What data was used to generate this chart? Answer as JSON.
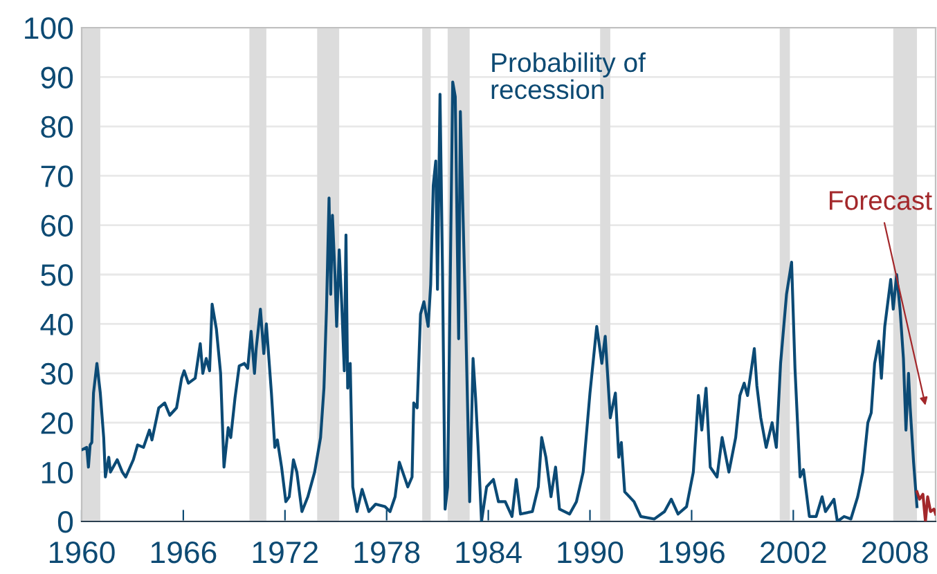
{
  "chart_data": {
    "type": "line",
    "series": [
      {
        "color": "#0b4a75",
        "x": [
          1960.0,
          1960.3,
          1960.4,
          1960.5,
          1960.6,
          1960.7,
          1960.9,
          1961.1,
          1961.3,
          1961.4,
          1961.6,
          1961.7,
          1962.1,
          1962.4,
          1962.6,
          1963.05,
          1963.3,
          1963.65,
          1964.0,
          1964.15,
          1964.55,
          1964.9,
          1965.2,
          1965.6,
          1965.9,
          1966.05,
          1966.3,
          1966.7,
          1967.0,
          1967.15,
          1967.35,
          1967.55,
          1967.7,
          1967.95,
          1968.2,
          1968.4,
          1968.65,
          1968.8,
          1969.05,
          1969.3,
          1969.6,
          1969.8,
          1970.0,
          1970.2,
          1970.3,
          1970.55,
          1970.75,
          1970.9,
          1971.2,
          1971.4,
          1971.55,
          1971.8,
          1972.05,
          1972.25,
          1972.5,
          1972.7,
          1973.0,
          1973.35,
          1973.75,
          1974.1,
          1974.3,
          1974.45,
          1974.6,
          1974.7,
          1974.8,
          1974.95,
          1975.05,
          1975.2,
          1975.35,
          1975.5,
          1975.6,
          1975.7,
          1975.85,
          1976.0,
          1976.25,
          1976.55,
          1976.95,
          1977.35,
          1977.9,
          1978.2,
          1978.5,
          1978.75,
          1978.95,
          1979.25,
          1979.5,
          1979.6,
          1979.8,
          1980.0,
          1980.2,
          1980.45,
          1980.6,
          1980.75,
          1980.9,
          1981.0,
          1981.15,
          1981.3,
          1981.45,
          1981.6,
          1981.9,
          1982.05,
          1982.25,
          1982.35,
          1982.65,
          1982.9,
          1983.1,
          1983.25,
          1983.4,
          1983.6,
          1983.9,
          1984.3,
          1984.6,
          1985.0,
          1985.4,
          1985.65,
          1985.9,
          1986.6,
          1986.95,
          1987.15,
          1987.4,
          1987.7,
          1987.97,
          1988.2,
          1988.8,
          1989.2,
          1989.6,
          1990.0,
          1990.4,
          1990.7,
          1990.9,
          1991.2,
          1991.5,
          1991.7,
          1991.85,
          1992.05,
          1992.6,
          1993.0,
          1993.8,
          1994.4,
          1994.8,
          1995.2,
          1995.7,
          1996.1,
          1996.4,
          1996.6,
          1996.85,
          1997.1,
          1997.5,
          1997.8,
          1998.2,
          1998.6,
          1998.85,
          1999.1,
          1999.3,
          1999.7,
          1999.85,
          2000.08,
          2000.4,
          2000.75,
          2001.0,
          2001.25,
          2001.6,
          2001.9,
          2002.1,
          2002.4,
          2002.6,
          2002.95,
          2003.35,
          2003.7,
          2003.9,
          2004.4,
          2004.6,
          2005.0,
          2005.4,
          2005.8,
          2006.1,
          2006.4,
          2006.6,
          2006.8,
          2007.05,
          2007.2,
          2007.4,
          2007.75,
          2007.9,
          2008.1,
          2008.3,
          2008.5,
          2008.65,
          2008.8,
          2008.9,
          2009.1,
          2009.3
        ],
        "values": [
          14.5,
          15,
          11,
          15.5,
          16,
          26,
          32,
          26,
          17,
          9,
          13,
          10,
          12.5,
          10,
          9,
          12.5,
          15.5,
          15,
          18.5,
          16.5,
          23,
          24,
          21.5,
          23,
          29,
          30.5,
          28,
          29,
          36,
          30,
          33,
          30.5,
          44,
          39,
          30,
          11,
          19,
          17,
          25,
          31.5,
          32,
          31,
          38.5,
          30,
          35,
          43,
          34,
          40,
          26,
          15,
          16.5,
          11,
          4,
          5,
          12.5,
          10,
          2,
          5,
          10,
          17,
          27,
          43,
          65.5,
          46,
          62,
          50,
          39.5,
          55,
          44,
          30.5,
          58,
          27,
          32,
          7,
          2,
          6.5,
          2,
          3.5,
          3,
          2,
          5,
          12,
          10,
          7,
          9,
          24,
          23,
          42,
          44.5,
          39.5,
          48,
          68,
          73,
          47,
          86.5,
          50,
          2.5,
          7,
          89,
          86,
          37,
          83,
          43,
          4,
          33,
          25,
          15,
          0,
          7,
          8.5,
          4,
          4,
          1,
          8.5,
          1.5,
          2,
          7,
          17,
          13,
          5,
          11,
          2.5,
          1.5,
          4,
          10,
          26,
          39.5,
          32,
          37.5,
          21,
          26,
          13,
          16,
          6,
          4,
          1,
          0.5,
          2,
          4.5,
          1.5,
          3,
          10,
          25.5,
          18.5,
          27,
          11,
          9,
          17,
          10,
          17,
          25.5,
          28,
          25.5,
          35,
          27.5,
          21,
          15,
          20,
          15,
          32,
          46,
          52.5,
          31,
          9,
          10.5,
          1,
          1,
          5,
          2,
          4.5,
          0,
          1,
          0.5,
          5,
          10,
          20,
          22,
          32,
          36.5,
          29,
          39.5,
          49,
          43,
          50,
          43,
          33,
          18.5,
          30,
          23,
          12,
          3
        ]
      },
      {
        "color": "#a3282b",
        "x": [
          2009.3,
          2009.45,
          2009.65,
          2009.8,
          2009.93,
          2010.1,
          2010.3,
          2010.4
        ],
        "values": [
          6,
          4.5,
          5.5,
          0,
          5,
          2,
          2.5,
          1.5
        ]
      }
    ],
    "xlim": [
      1960,
      2010.4
    ],
    "xticks": [
      1960,
      1966,
      1972,
      1978,
      1984,
      1990,
      1996,
      2002,
      2008
    ],
    "ylim": [
      0,
      100
    ],
    "yticks": [
      0,
      10,
      20,
      30,
      40,
      50,
      60,
      70,
      80,
      90,
      100
    ],
    "grid": "y",
    "bands": [
      {
        "axis": "x",
        "from": 1960.0,
        "to": 1961.1,
        "color": "#dcdcdc"
      },
      {
        "axis": "x",
        "from": 1969.9,
        "to": 1970.9,
        "color": "#dcdcdc"
      },
      {
        "axis": "x",
        "from": 1973.9,
        "to": 1975.2,
        "color": "#dcdcdc"
      },
      {
        "axis": "x",
        "from": 1980.1,
        "to": 1980.6,
        "color": "#dcdcdc"
      },
      {
        "axis": "x",
        "from": 1981.6,
        "to": 1982.9,
        "color": "#dcdcdc"
      },
      {
        "axis": "x",
        "from": 1990.6,
        "to": 1991.2,
        "color": "#dcdcdc"
      },
      {
        "axis": "x",
        "from": 2001.2,
        "to": 2001.8,
        "color": "#dcdcdc"
      },
      {
        "axis": "x",
        "from": 2007.9,
        "to": 2009.3,
        "color": "#dcdcdc"
      }
    ],
    "annotations": [
      "Probability of\nrecession",
      "Forecast"
    ]
  }
}
